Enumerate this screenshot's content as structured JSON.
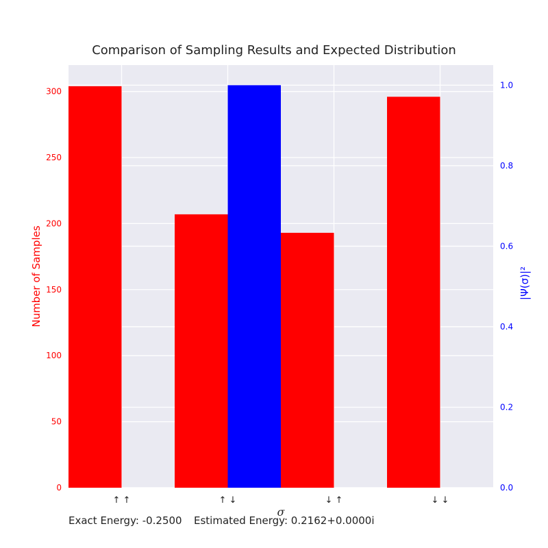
{
  "chart_data": {
    "type": "bar",
    "title": "Comparison of Sampling Results and Expected Distribution",
    "xlabel": "σ",
    "categories": [
      "↑ ↑",
      "↑ ↓",
      "↓ ↑",
      "↓ ↓"
    ],
    "series": [
      {
        "axis": "left",
        "values": [
          304,
          207,
          193,
          296
        ],
        "color": "#ff0000"
      },
      {
        "axis": "right",
        "values": [
          0.0,
          1.0,
          0.0,
          0.0
        ],
        "color": "#0000ff"
      }
    ],
    "y_left": {
      "label": "Number of Samples",
      "lim": [
        0,
        320
      ],
      "ticks": [
        0,
        50,
        100,
        150,
        200,
        250,
        300
      ],
      "color": "#ff0000"
    },
    "y_right": {
      "label": "|Ψ(σ)|²",
      "lim": [
        0,
        1.05
      ],
      "ticks": [
        "0.0",
        "0.2",
        "0.4",
        "0.6",
        "0.8",
        "1.0"
      ],
      "color": "#0000ff"
    },
    "grid": true,
    "background": "#eaeaf2"
  },
  "footer": {
    "exact_energy": "Exact Energy: -0.2500",
    "estimated_energy": "Estimated Energy: 0.2162+0.0000i"
  }
}
